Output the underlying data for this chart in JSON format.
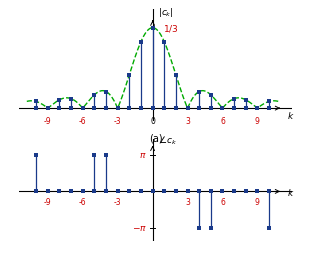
{
  "k_min": -10,
  "k_max": 10,
  "N": 3,
  "envelope_color": "#00aa00",
  "stem_color": "#1a3a8a",
  "dot_color": "#1a3a8a",
  "label_color": "#cc0000",
  "pi_color": "#cc0000",
  "background": "#ffffff",
  "xticks_labeled_mag": [
    -9,
    -6,
    -3,
    0,
    3,
    6,
    9
  ],
  "xticks_labeled_phase_neg": [
    -9,
    -6,
    -3
  ],
  "xticks_labeled_phase_pos": [
    3,
    6,
    9
  ],
  "pi_val": 3.14159265358979
}
